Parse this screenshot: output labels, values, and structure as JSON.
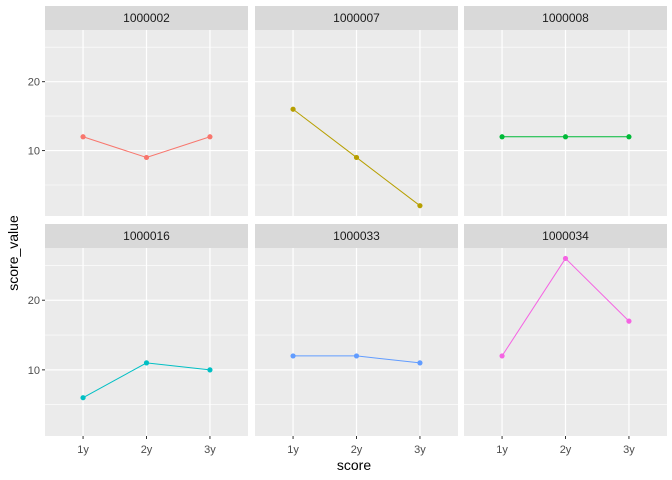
{
  "chart_data": {
    "type": "line",
    "facet": "wrap",
    "ncol": 3,
    "xlabel": "score",
    "ylabel": "score_value",
    "categories": [
      "1y",
      "2y",
      "3y"
    ],
    "ylim": [
      0.5,
      27.5
    ],
    "yticks": [
      10,
      20
    ],
    "grid": true,
    "panel_background": "#ebebeb",
    "strip_background": "#d9d9d9",
    "series": [
      {
        "name": "1000002",
        "color": "#F8766D",
        "values": [
          12,
          9,
          12
        ]
      },
      {
        "name": "1000007",
        "color": "#B79F00",
        "values": [
          16,
          9,
          2
        ]
      },
      {
        "name": "1000008",
        "color": "#00BA38",
        "values": [
          12,
          12,
          12
        ]
      },
      {
        "name": "1000016",
        "color": "#00BFC4",
        "values": [
          6,
          11,
          10
        ]
      },
      {
        "name": "1000033",
        "color": "#619CFF",
        "values": [
          12,
          12,
          11
        ]
      },
      {
        "name": "1000034",
        "color": "#F564E3",
        "values": [
          12,
          26,
          17
        ]
      }
    ]
  }
}
